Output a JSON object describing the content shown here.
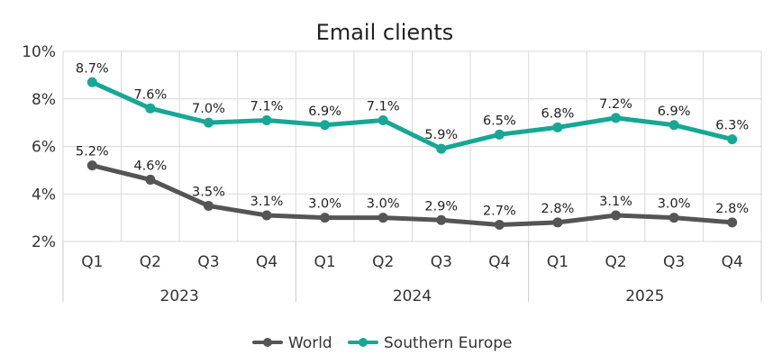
{
  "chart_data": {
    "type": "line",
    "title": "Email clients",
    "categories": [
      "Q1",
      "Q2",
      "Q3",
      "Q4",
      "Q1",
      "Q2",
      "Q3",
      "Q4",
      "Q1",
      "Q2",
      "Q3",
      "Q4"
    ],
    "groups": [
      {
        "label": "2023",
        "count": 4
      },
      {
        "label": "2024",
        "count": 4
      },
      {
        "label": "2025",
        "count": 4
      }
    ],
    "series": [
      {
        "name": "World",
        "color": "#555555",
        "values": [
          5.2,
          4.6,
          3.5,
          3.1,
          3.0,
          3.0,
          2.9,
          2.7,
          2.8,
          3.1,
          3.0,
          2.8
        ],
        "labels": [
          "5.2%",
          "4.6%",
          "3.5%",
          "3.1%",
          "3.0%",
          "3.0%",
          "2.9%",
          "2.7%",
          "2.8%",
          "3.1%",
          "3.0%",
          "2.8%"
        ]
      },
      {
        "name": "Southern Europe",
        "color": "#16a795",
        "values": [
          8.7,
          7.6,
          7.0,
          7.1,
          6.9,
          7.1,
          5.9,
          6.5,
          6.8,
          7.2,
          6.9,
          6.3
        ],
        "labels": [
          "8.7%",
          "7.6%",
          "7.0%",
          "7.1%",
          "6.9%",
          "7.1%",
          "5.9%",
          "6.5%",
          "6.8%",
          "7.2%",
          "6.9%",
          "6.3%"
        ]
      }
    ],
    "ylim": [
      2,
      10
    ],
    "yticks": [
      2,
      4,
      6,
      8,
      10
    ],
    "ytick_labels": [
      "2%",
      "4%",
      "6%",
      "8%",
      "10%"
    ],
    "grid": true,
    "legend_position": "bottom"
  }
}
